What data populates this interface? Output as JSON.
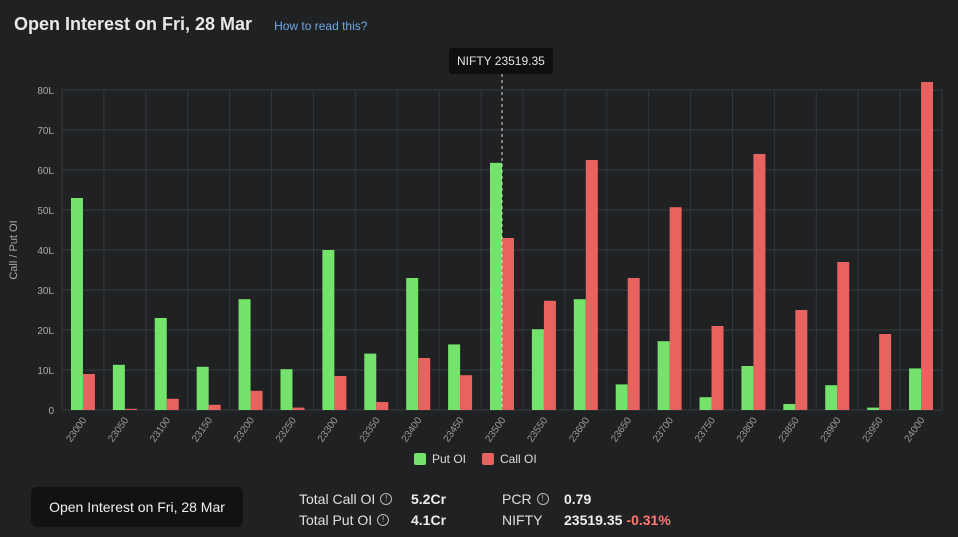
{
  "header": {
    "title": "Open Interest on Fri, 28 Mar",
    "help_link": "How to read this?"
  },
  "tooltip": {
    "text": "NIFTY 23519.35"
  },
  "legend": {
    "put_label": "Put OI",
    "call_label": "Call OI"
  },
  "footer": {
    "button_label": "Open Interest on Fri, 28 Mar",
    "total_call_label": "Total Call OI",
    "total_call_value": "5.2Cr",
    "total_put_label": "Total Put OI",
    "total_put_value": "4.1Cr",
    "pcr_label": "PCR",
    "pcr_value": "0.79",
    "nifty_label": "NIFTY",
    "nifty_value": "23519.35",
    "nifty_change": "-0.31%"
  },
  "colors": {
    "put": "#74e36c",
    "call": "#e8635f",
    "background": "#1f2123"
  },
  "chart_data": {
    "type": "bar",
    "ylabel": "Call / Put OI",
    "ylim": [
      0,
      80
    ],
    "ytick_labels": [
      "0",
      "10L",
      "20L",
      "30L",
      "40L",
      "50L",
      "60L",
      "70L",
      "80L"
    ],
    "categories": [
      "23000",
      "23050",
      "23100",
      "23150",
      "23200",
      "23250",
      "23300",
      "23350",
      "23400",
      "23450",
      "23500",
      "23550",
      "23600",
      "23650",
      "23700",
      "23750",
      "23800",
      "23850",
      "23900",
      "23950",
      "24000"
    ],
    "series": [
      {
        "name": "Put OI",
        "values": [
          53,
          11.3,
          23,
          10.8,
          27.7,
          10.2,
          40,
          14.1,
          33,
          16.4,
          61.8,
          20.2,
          27.7,
          6.4,
          17.2,
          3.2,
          11,
          1.5,
          6.2,
          0.6,
          10.4
        ]
      },
      {
        "name": "Call OI",
        "values": [
          9,
          0.3,
          2.8,
          1.3,
          4.8,
          0.6,
          8.5,
          2,
          13,
          8.7,
          43,
          27.3,
          62.5,
          33,
          50.7,
          21,
          64,
          25,
          37,
          19,
          82
        ]
      }
    ],
    "spot_marker": {
      "label": "NIFTY 23519.35",
      "category": "23500"
    },
    "grid": true,
    "legend_position": "bottom"
  }
}
